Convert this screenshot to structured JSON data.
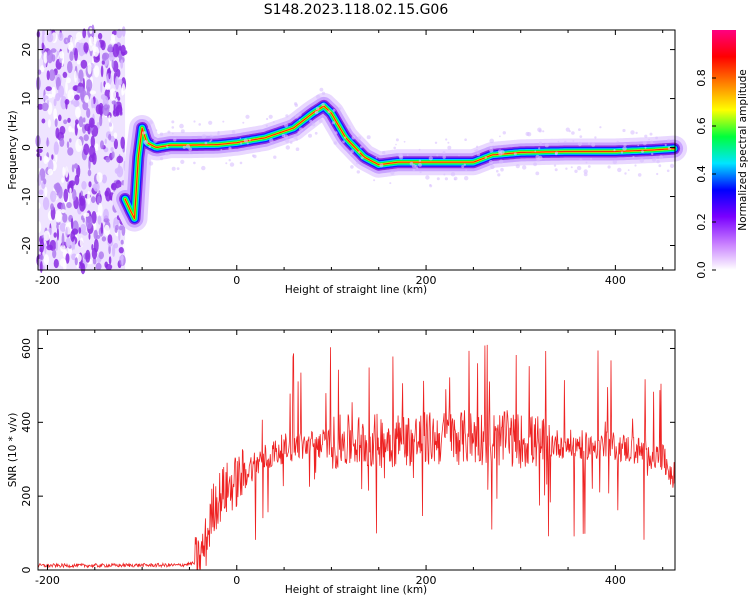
{
  "title": "S148.2023.118.02.15.G06",
  "chart_data": [
    {
      "type": "heatmap",
      "title": "S148.2023.118.02.15.G06",
      "xlabel": "Height of straight line (km)",
      "ylabel": "Frequency (Hz)",
      "xlim": [
        -210,
        463
      ],
      "ylim": [
        -25,
        24
      ],
      "x_ticks": [
        -200,
        0,
        200,
        400
      ],
      "y_ticks": [
        -20,
        -10,
        0,
        10,
        20
      ],
      "colorbar": {
        "label": "Normalized spectral amplitude",
        "range": [
          0,
          1
        ],
        "ticks": [
          0.0,
          0.2,
          0.4,
          0.6,
          0.8
        ],
        "colormap": "rainbow",
        "colors": [
          "#ffffff",
          "#c77dff",
          "#7a00ff",
          "#0000ff",
          "#00e5ff",
          "#00ff3c",
          "#ffff00",
          "#ff8000",
          "#ff0000",
          "#ff0080"
        ]
      },
      "noise_region_x": [
        -210,
        -118
      ],
      "ridge": {
        "x": [
          -118,
          -112,
          -108,
          -104,
          -100,
          -95,
          -85,
          -70,
          -50,
          -20,
          0,
          30,
          60,
          80,
          92,
          100,
          115,
          135,
          150,
          170,
          200,
          230,
          250,
          270,
          300,
          350,
          400,
          440,
          463
        ],
        "y": [
          -10.5,
          -13,
          -14.5,
          -2,
          4,
          1,
          0,
          0.5,
          0.5,
          0.6,
          1,
          2,
          4,
          7,
          8.5,
          7,
          2,
          -2,
          -3.5,
          -3,
          -3,
          -3,
          -3,
          -1.5,
          -1,
          -0.8,
          -0.8,
          -0.5,
          -0.2
        ]
      }
    },
    {
      "type": "line",
      "xlabel": "Height of straight line (km)",
      "ylabel": "SNR (10 * v/v)",
      "xlim": [
        -210,
        463
      ],
      "ylim": [
        0,
        650
      ],
      "x_ticks": [
        -200,
        0,
        200,
        400
      ],
      "y_ticks": [
        0,
        200,
        400,
        600
      ],
      "line_color": "#ee2222",
      "envelope": {
        "x": [
          -210,
          -150,
          -100,
          -60,
          -40,
          -32,
          -25,
          -15,
          0,
          20,
          50,
          100,
          150,
          200,
          250,
          300,
          350,
          400,
          430,
          450,
          463
        ],
        "y": [
          12,
          12,
          13,
          13,
          20,
          80,
          170,
          210,
          240,
          290,
          330,
          345,
          350,
          355,
          360,
          350,
          340,
          335,
          320,
          300,
          250
        ]
      }
    }
  ]
}
